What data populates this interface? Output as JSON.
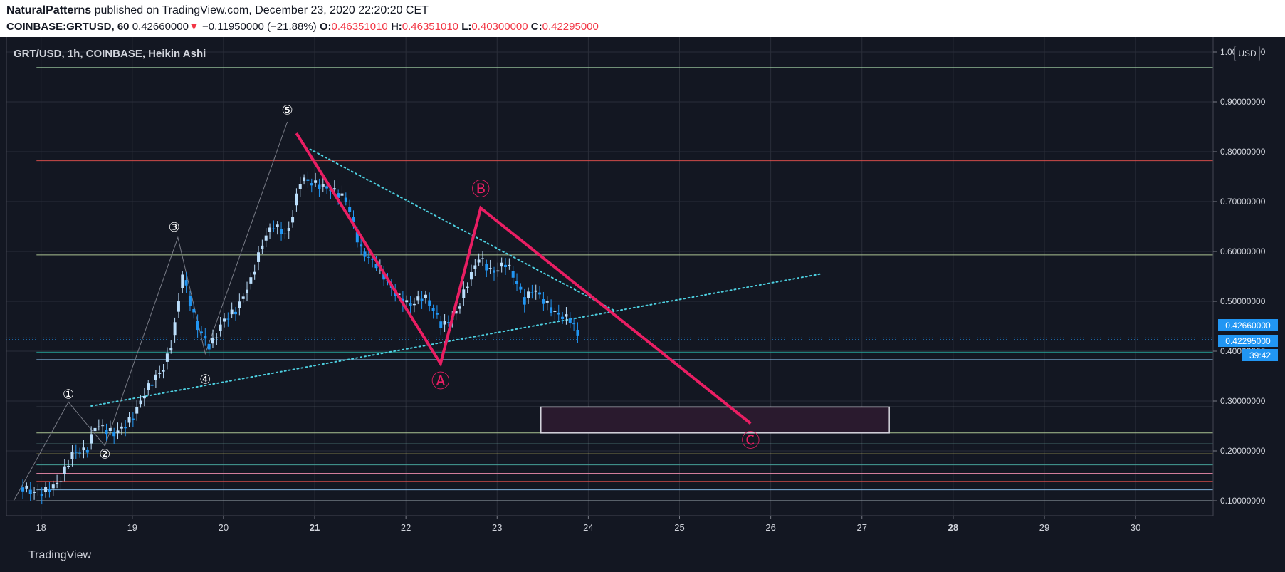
{
  "header": {
    "author": "NaturalPatterns",
    "published_text": " published on TradingView.com, December 23, 2020 22:20:20 CET",
    "symbol_interval": "COINBASE:GRTUSD, 60",
    "last": "0.42660000",
    "arrow": "▼",
    "change": "−0.11950000 (−21.88%)",
    "o_label": "O:",
    "o_value": "0.46351010",
    "h_label": "H:",
    "h_value": "0.46351010",
    "l_label": "L:",
    "l_value": "0.40300000",
    "c_label": "C:",
    "c_value": "0.42295000"
  },
  "pane": {
    "title": "GRT/USD, 1h, COINBASE, Heikin Ashi",
    "currency": "USD",
    "price_labels": [
      "0.42660000",
      "0.42295000",
      "39:42"
    ]
  },
  "footer": {
    "brand": "TradingView"
  },
  "colors": {
    "background": "#131722",
    "up_candle": "#bbdefb",
    "down_candle": "#2196f3",
    "pattern": "#e91e63",
    "trendline": "#4dd0e1",
    "zone": "#2a1a2e"
  },
  "chart_data": {
    "type": "candlestick",
    "title": "GRT/USD, 1h, COINBASE, Heikin Ashi",
    "x_ticks": [
      "18",
      "19",
      "20",
      "21",
      "22",
      "23",
      "24",
      "25",
      "26",
      "27",
      "28",
      "29",
      "30"
    ],
    "x_tick_values": [
      18,
      19,
      20,
      21,
      22,
      23,
      24,
      25,
      26,
      27,
      28,
      29,
      30
    ],
    "xlim": [
      17.62,
      30.85
    ],
    "y_ticks": [
      "0.10000000",
      "0.20000000",
      "0.30000000",
      "0.40000000",
      "0.50000000",
      "0.60000000",
      "0.70000000",
      "0.80000000",
      "0.90000000",
      "1.00000000"
    ],
    "y_tick_values": [
      0.1,
      0.2,
      0.3,
      0.4,
      0.5,
      0.6,
      0.7,
      0.8,
      0.9,
      1.0
    ],
    "ylim": [
      0.07,
      1.03
    ],
    "price_path": [
      {
        "x": 17.8,
        "y": 0.135
      },
      {
        "x": 18.0,
        "y": 0.125
      },
      {
        "x": 18.2,
        "y": 0.135
      },
      {
        "x": 18.35,
        "y": 0.185
      },
      {
        "x": 18.5,
        "y": 0.19
      },
      {
        "x": 18.6,
        "y": 0.25
      },
      {
        "x": 18.8,
        "y": 0.245
      },
      {
        "x": 19.0,
        "y": 0.275
      },
      {
        "x": 19.15,
        "y": 0.32
      },
      {
        "x": 19.35,
        "y": 0.355
      },
      {
        "x": 19.45,
        "y": 0.42
      },
      {
        "x": 19.55,
        "y": 0.55
      },
      {
        "x": 19.7,
        "y": 0.46
      },
      {
        "x": 19.85,
        "y": 0.42
      },
      {
        "x": 20.0,
        "y": 0.47
      },
      {
        "x": 20.15,
        "y": 0.48
      },
      {
        "x": 20.3,
        "y": 0.53
      },
      {
        "x": 20.45,
        "y": 0.62
      },
      {
        "x": 20.55,
        "y": 0.65
      },
      {
        "x": 20.7,
        "y": 0.64
      },
      {
        "x": 20.85,
        "y": 0.76
      },
      {
        "x": 21.0,
        "y": 0.74
      },
      {
        "x": 21.15,
        "y": 0.72
      },
      {
        "x": 21.35,
        "y": 0.69
      },
      {
        "x": 21.5,
        "y": 0.6
      },
      {
        "x": 21.7,
        "y": 0.58
      },
      {
        "x": 21.9,
        "y": 0.52
      },
      {
        "x": 22.05,
        "y": 0.49
      },
      {
        "x": 22.2,
        "y": 0.5
      },
      {
        "x": 22.4,
        "y": 0.44
      },
      {
        "x": 22.55,
        "y": 0.48
      },
      {
        "x": 22.7,
        "y": 0.56
      },
      {
        "x": 22.8,
        "y": 0.6
      },
      {
        "x": 22.95,
        "y": 0.56
      },
      {
        "x": 23.1,
        "y": 0.57
      },
      {
        "x": 23.3,
        "y": 0.49
      },
      {
        "x": 23.4,
        "y": 0.52
      },
      {
        "x": 23.6,
        "y": 0.49
      },
      {
        "x": 23.8,
        "y": 0.475
      },
      {
        "x": 23.92,
        "y": 0.423
      }
    ],
    "horizontal_levels": [
      {
        "y": 0.969,
        "color": "#a5d6a7"
      },
      {
        "y": 0.782,
        "color": "#ef5350"
      },
      {
        "y": 0.593,
        "color": "#c5e1a5"
      },
      {
        "y": 0.398,
        "color": "#26a69a"
      },
      {
        "y": 0.383,
        "color": "#90caf9"
      },
      {
        "y": 0.288,
        "color": "#b0bec5"
      },
      {
        "y": 0.236,
        "color": "#c5e1a5"
      },
      {
        "y": 0.214,
        "color": "#80cbc4"
      },
      {
        "y": 0.194,
        "color": "#fff176"
      },
      {
        "y": 0.172,
        "color": "#4db6ac"
      },
      {
        "y": 0.155,
        "color": "#f48fb1"
      },
      {
        "y": 0.139,
        "color": "#ef5350"
      },
      {
        "y": 0.122,
        "color": "#90caf9"
      },
      {
        "y": 0.1,
        "color": "#b0bec5"
      }
    ],
    "price_lines": [
      {
        "y": 0.4266,
        "label": "0.42660000"
      },
      {
        "y": 0.42295,
        "label": "0.42295000"
      }
    ],
    "trendlines": [
      {
        "from": {
          "x": 18.55,
          "y": 0.29
        },
        "to": {
          "x": 26.55,
          "y": 0.555
        },
        "style": "dotted"
      },
      {
        "from": {
          "x": 20.95,
          "y": 0.805
        },
        "to": {
          "x": 24.3,
          "y": 0.48
        },
        "style": "dotted"
      }
    ],
    "abc_pattern": [
      {
        "x": 20.8,
        "y": 0.837
      },
      {
        "x": 22.38,
        "y": 0.375
      },
      {
        "x": 22.82,
        "y": 0.687
      },
      {
        "x": 25.78,
        "y": 0.255
      }
    ],
    "impulse_path": [
      {
        "x": 17.7,
        "y": 0.1
      },
      {
        "x": 18.3,
        "y": 0.298
      },
      {
        "x": 18.7,
        "y": 0.21
      },
      {
        "x": 19.5,
        "y": 0.628
      },
      {
        "x": 19.8,
        "y": 0.395
      },
      {
        "x": 20.7,
        "y": 0.86
      }
    ],
    "wave_labels": [
      {
        "text": "①",
        "x": 18.3,
        "y": 0.315
      },
      {
        "text": "②",
        "x": 18.7,
        "y": 0.195
      },
      {
        "text": "③",
        "x": 19.46,
        "y": 0.65
      },
      {
        "text": "④",
        "x": 19.8,
        "y": 0.345
      },
      {
        "text": "⑤",
        "x": 20.7,
        "y": 0.885
      },
      {
        "text": "Ⓐ",
        "x": 22.38,
        "y": 0.337
      },
      {
        "text": "Ⓑ",
        "x": 22.82,
        "y": 0.722
      },
      {
        "text": "Ⓒ",
        "x": 25.78,
        "y": 0.218
      }
    ],
    "target_zone": {
      "x": [
        23.48,
        27.3
      ],
      "y": [
        0.236,
        0.288
      ]
    }
  }
}
